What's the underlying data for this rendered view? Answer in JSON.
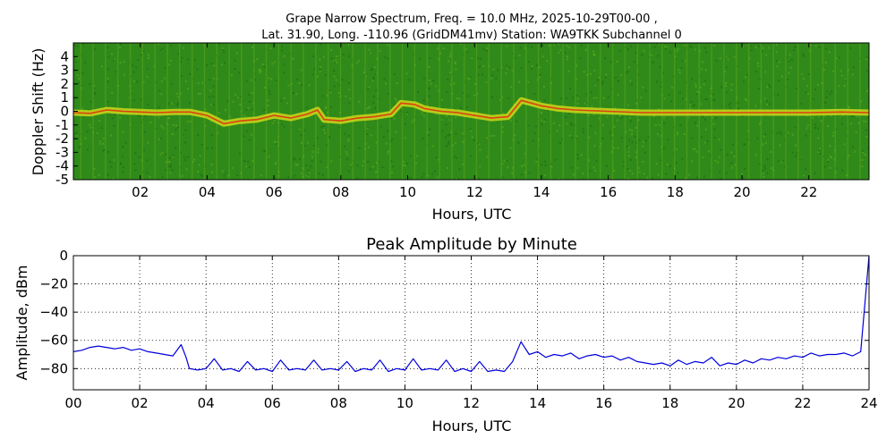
{
  "chart_data": [
    {
      "type": "heatmap",
      "title_line1": "Grape Narrow Spectrum, Freq. = 10.0 MHz, 2025-10-29T00-00 ,",
      "title_line2": "Lat.  31.90, Long. -110.96 (GridDM41mv) Station: WA9TKK Subchannel 0",
      "xlabel": "Hours, UTC",
      "ylabel": "Doppler Shift (Hz)",
      "xlim": [
        0,
        23.8
      ],
      "ylim": [
        -5,
        5
      ],
      "x_ticks": [
        2,
        4,
        6,
        8,
        10,
        12,
        14,
        16,
        18,
        20,
        22
      ],
      "x_tick_labels": [
        "02",
        "04",
        "06",
        "08",
        "10",
        "12",
        "14",
        "16",
        "18",
        "20",
        "22"
      ],
      "y_ticks": [
        4,
        3,
        2,
        1,
        0,
        -1,
        -2,
        -3,
        -4,
        -5
      ],
      "y_tick_labels": [
        "4",
        "3",
        "2",
        "1",
        "0",
        "-1",
        "-2",
        "-3",
        "-4",
        "-5"
      ],
      "colormap": [
        "#2f8a1a",
        "#5aa61c",
        "#e3e21a",
        "#e02a10"
      ],
      "doppler_trace": [
        {
          "x": 0.0,
          "y": -0.1
        },
        {
          "x": 0.5,
          "y": -0.15
        },
        {
          "x": 1.0,
          "y": 0.1
        },
        {
          "x": 1.5,
          "y": 0.0
        },
        {
          "x": 2.0,
          "y": -0.05
        },
        {
          "x": 2.5,
          "y": -0.1
        },
        {
          "x": 3.0,
          "y": -0.05
        },
        {
          "x": 3.5,
          "y": -0.05
        },
        {
          "x": 4.0,
          "y": -0.3
        },
        {
          "x": 4.5,
          "y": -0.9
        },
        {
          "x": 5.0,
          "y": -0.7
        },
        {
          "x": 5.5,
          "y": -0.6
        },
        {
          "x": 6.0,
          "y": -0.3
        },
        {
          "x": 6.5,
          "y": -0.5
        },
        {
          "x": 7.0,
          "y": -0.2
        },
        {
          "x": 7.3,
          "y": 0.1
        },
        {
          "x": 7.5,
          "y": -0.6
        },
        {
          "x": 8.0,
          "y": -0.7
        },
        {
          "x": 8.5,
          "y": -0.5
        },
        {
          "x": 9.0,
          "y": -0.4
        },
        {
          "x": 9.5,
          "y": -0.2
        },
        {
          "x": 9.8,
          "y": 0.6
        },
        {
          "x": 10.2,
          "y": 0.5
        },
        {
          "x": 10.5,
          "y": 0.2
        },
        {
          "x": 11.0,
          "y": 0.0
        },
        {
          "x": 11.5,
          "y": -0.1
        },
        {
          "x": 12.0,
          "y": -0.3
        },
        {
          "x": 12.5,
          "y": -0.5
        },
        {
          "x": 13.0,
          "y": -0.4
        },
        {
          "x": 13.4,
          "y": 0.8
        },
        {
          "x": 14.0,
          "y": 0.4
        },
        {
          "x": 14.5,
          "y": 0.2
        },
        {
          "x": 15.0,
          "y": 0.1
        },
        {
          "x": 16.0,
          "y": 0.0
        },
        {
          "x": 17.0,
          "y": -0.1
        },
        {
          "x": 18.0,
          "y": -0.1
        },
        {
          "x": 19.0,
          "y": -0.1
        },
        {
          "x": 20.0,
          "y": -0.1
        },
        {
          "x": 21.0,
          "y": -0.1
        },
        {
          "x": 22.0,
          "y": -0.1
        },
        {
          "x": 23.0,
          "y": -0.05
        },
        {
          "x": 23.8,
          "y": -0.1
        }
      ]
    },
    {
      "type": "line",
      "title": "Peak Amplitude by Minute",
      "xlabel": "Hours, UTC",
      "ylabel": "Amplitude, dBm",
      "xlim": [
        0,
        24
      ],
      "ylim": [
        -95,
        0
      ],
      "x_ticks": [
        0,
        2,
        4,
        6,
        8,
        10,
        12,
        14,
        16,
        18,
        20,
        22,
        24
      ],
      "x_tick_labels": [
        "00",
        "02",
        "04",
        "06",
        "08",
        "10",
        "12",
        "14",
        "16",
        "18",
        "20",
        "22",
        "24"
      ],
      "y_ticks": [
        0,
        -20,
        -40,
        -60,
        -80
      ],
      "y_tick_labels": [
        "0",
        "−20",
        "−40",
        "−60",
        "−80"
      ],
      "grid": true,
      "line_color": "#0000dd",
      "x": [
        0.0,
        0.25,
        0.5,
        0.75,
        1.0,
        1.25,
        1.5,
        1.75,
        2.0,
        2.25,
        2.5,
        2.75,
        3.0,
        3.25,
        3.4,
        3.5,
        3.75,
        4.0,
        4.25,
        4.5,
        4.75,
        5.0,
        5.25,
        5.5,
        5.75,
        6.0,
        6.25,
        6.5,
        6.75,
        7.0,
        7.25,
        7.5,
        7.75,
        8.0,
        8.25,
        8.5,
        8.75,
        9.0,
        9.25,
        9.5,
        9.75,
        10.0,
        10.25,
        10.5,
        10.75,
        11.0,
        11.25,
        11.5,
        11.75,
        12.0,
        12.25,
        12.5,
        12.75,
        13.0,
        13.25,
        13.5,
        13.75,
        14.0,
        14.25,
        14.5,
        14.75,
        15.0,
        15.25,
        15.5,
        15.75,
        16.0,
        16.25,
        16.5,
        16.75,
        17.0,
        17.25,
        17.5,
        17.75,
        18.0,
        18.25,
        18.5,
        18.75,
        19.0,
        19.25,
        19.5,
        19.75,
        20.0,
        20.25,
        20.5,
        20.75,
        21.0,
        21.25,
        21.5,
        21.75,
        22.0,
        22.25,
        22.5,
        22.75,
        23.0,
        23.25,
        23.5,
        23.75,
        24.0
      ],
      "values": [
        -68,
        -67,
        -65,
        -64,
        -65,
        -66,
        -65,
        -67,
        -66,
        -68,
        -69,
        -70,
        -71,
        -63,
        -72,
        -80,
        -81,
        -80,
        -73,
        -81,
        -80,
        -82,
        -75,
        -81,
        -80,
        -82,
        -74,
        -81,
        -80,
        -81,
        -74,
        -81,
        -80,
        -81,
        -75,
        -82,
        -80,
        -81,
        -74,
        -82,
        -80,
        -81,
        -73,
        -81,
        -80,
        -81,
        -74,
        -82,
        -80,
        -82,
        -75,
        -82,
        -81,
        -82,
        -75,
        -61,
        -70,
        -68,
        -72,
        -70,
        -71,
        -69,
        -73,
        -71,
        -70,
        -72,
        -71,
        -74,
        -72,
        -75,
        -76,
        -77,
        -76,
        -78,
        -74,
        -77,
        -75,
        -76,
        -72,
        -78,
        -76,
        -77,
        -74,
        -76,
        -73,
        -74,
        -72,
        -73,
        -71,
        -72,
        -69,
        -71,
        -70,
        -70,
        -69,
        -71,
        -68,
        0
      ]
    }
  ]
}
